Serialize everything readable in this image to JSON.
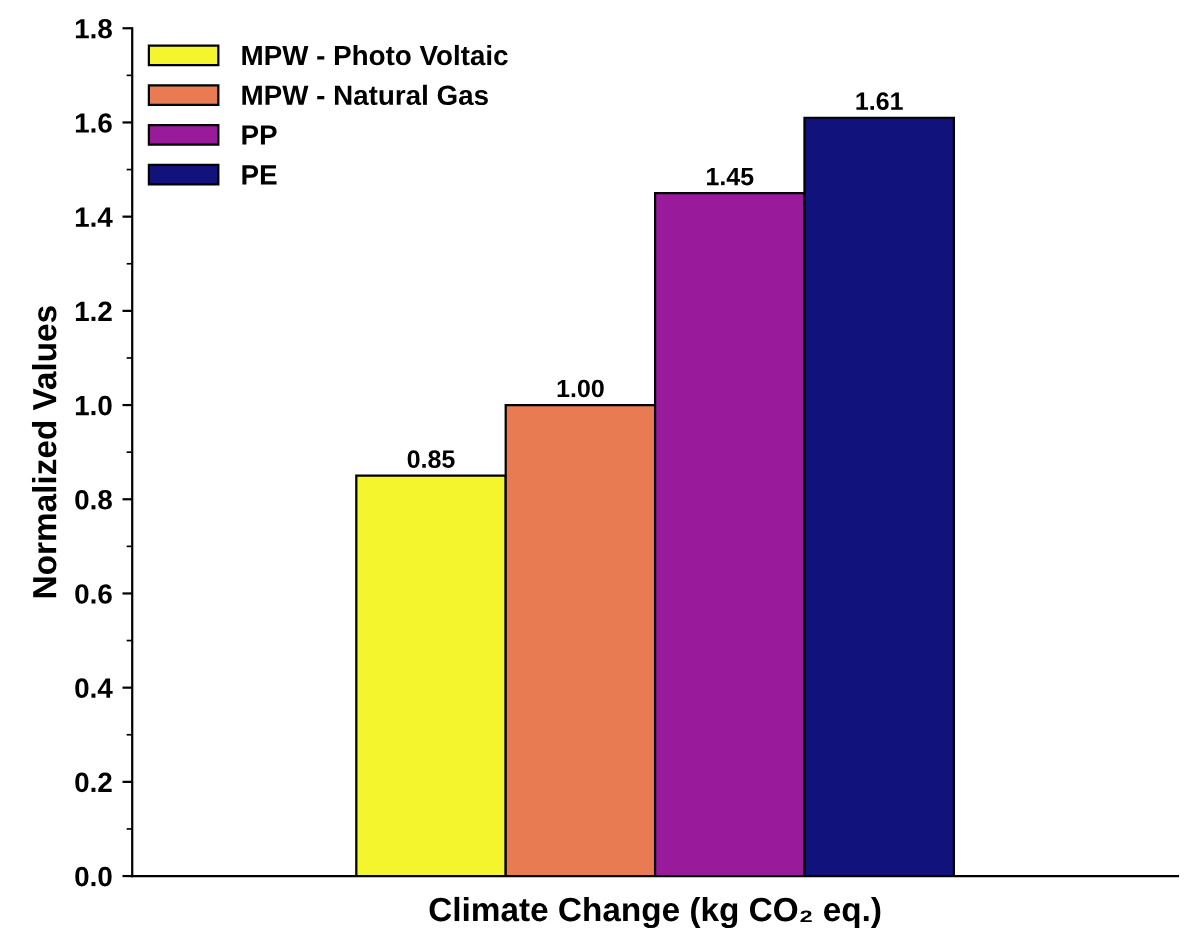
{
  "chart_data": {
    "type": "bar",
    "xlabel": "Climate Change (kg CO₂ eq.)",
    "ylabel": "Normalized Values",
    "categories": [
      null
    ],
    "series": [
      {
        "name": "MPW - Photo Voltaic",
        "color": "#f4f52c",
        "values": [
          0.85
        ],
        "value_labels": [
          "0.85"
        ]
      },
      {
        "name": "MPW - Natural Gas",
        "color": "#e97b52",
        "values": [
          1.0
        ],
        "value_labels": [
          "1.00"
        ]
      },
      {
        "name": "PP",
        "color": "#9a1a9c",
        "values": [
          1.45
        ],
        "value_labels": [
          "1.45"
        ]
      },
      {
        "name": "PE",
        "color": "#12127c",
        "values": [
          1.61
        ],
        "value_labels": [
          "1.61"
        ]
      }
    ],
    "ylim": [
      0,
      1.8
    ],
    "yticks": [
      {
        "value": 0,
        "label": "0.0"
      },
      0.2,
      0.4,
      0.6,
      0.8,
      {
        "value": 1,
        "label": "1.0"
      },
      1.2,
      1.4,
      1.6,
      1.8
    ],
    "legend": "top left",
    "grid": false
  }
}
